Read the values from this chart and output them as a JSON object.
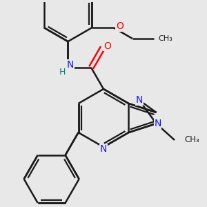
{
  "background_color": "#e8e8e8",
  "bond_color": "#1a1a1a",
  "bond_width": 1.8,
  "N_color": "#1414ff",
  "O_color": "#ff0000",
  "NH_color": "#1414ff",
  "H_color": "#008080",
  "figsize": [
    3.0,
    3.0
  ],
  "dpi": 100,
  "xlim": [
    -3.2,
    3.8
  ],
  "ylim": [
    -3.8,
    3.2
  ]
}
